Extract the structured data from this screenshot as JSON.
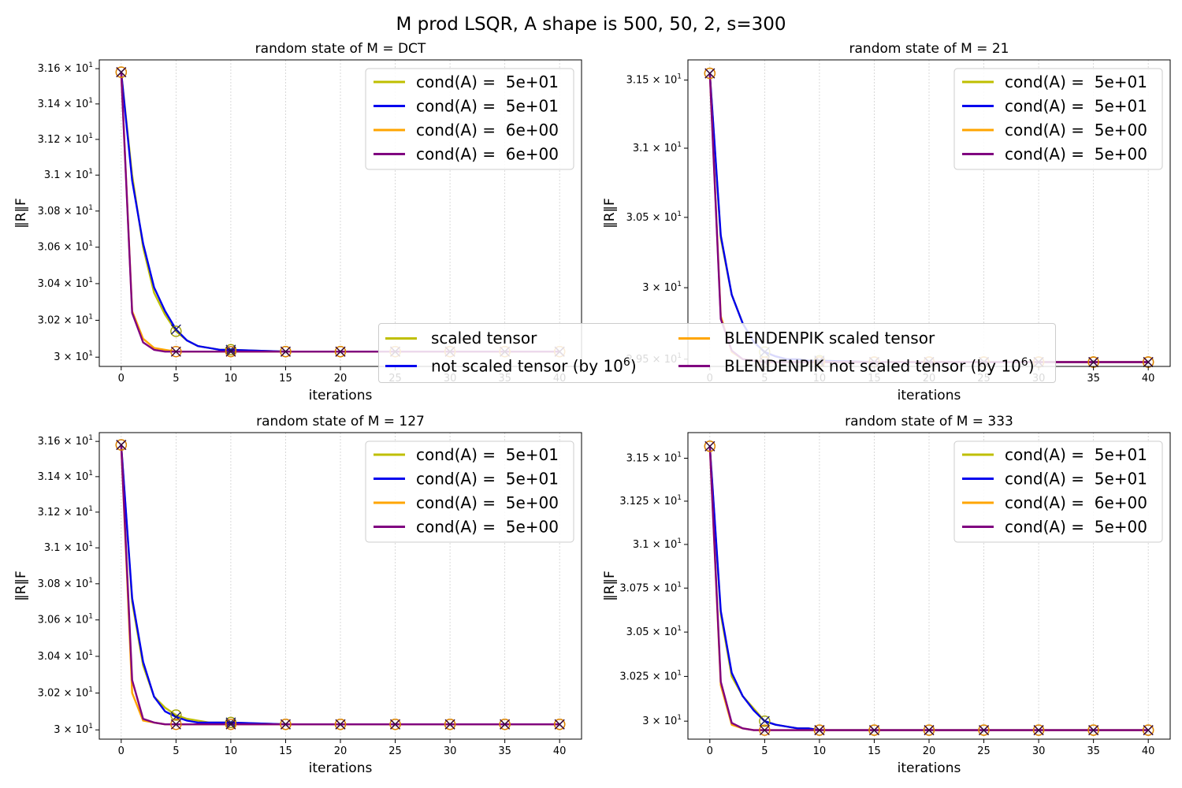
{
  "figure_title": "M prod LSQR, A shape is 500, 50, 2, s=300",
  "legend": {
    "entries": [
      {
        "label": "scaled tensor",
        "color": "#bfbf00"
      },
      {
        "label": "BLENDENPIK scaled tensor",
        "color": "#ffa500"
      },
      {
        "label_prefix": "not scaled tensor (by 10",
        "sup": "6",
        "label_suffix": ")",
        "color": "#0000ee"
      },
      {
        "label_prefix": "BLENDENPIK not scaled tensor (by 10",
        "sup": "6",
        "label_suffix": ")",
        "color": "#800080"
      }
    ]
  },
  "chart_data": [
    {
      "type": "line",
      "title": "random state of M = DCT",
      "xlabel": "iterations",
      "ylabel": "‖R‖F",
      "yscale": "log",
      "xlim": [
        -2,
        42
      ],
      "ylim": [
        29.95,
        31.65
      ],
      "xticks": [
        0,
        5,
        10,
        15,
        20,
        25,
        30,
        35,
        40
      ],
      "yticks": [
        {
          "v": 31.6,
          "m": "3.16"
        },
        {
          "v": 31.4,
          "m": "3.14"
        },
        {
          "v": 31.2,
          "m": "3.12"
        },
        {
          "v": 31.0,
          "m": "3.1"
        },
        {
          "v": 30.8,
          "m": "3.08"
        },
        {
          "v": 30.6,
          "m": "3.06"
        },
        {
          "v": 30.4,
          "m": "3.04"
        },
        {
          "v": 30.2,
          "m": "3.02"
        },
        {
          "v": 30.0,
          "m": "3"
        }
      ],
      "grid_x": true,
      "series": [
        {
          "name": "cond(A) =  5e+01",
          "color": "#bfbf00",
          "x": [
            0,
            1,
            2,
            3,
            4,
            5,
            6,
            7,
            8,
            9,
            10,
            15,
            20,
            25,
            30,
            35,
            40
          ],
          "y": [
            31.58,
            31.0,
            30.6,
            30.35,
            30.23,
            30.14,
            30.09,
            30.06,
            30.05,
            30.04,
            30.04,
            30.03,
            30.03,
            30.03,
            30.03,
            30.03,
            30.03
          ]
        },
        {
          "name": "cond(A) =  5e+01",
          "color": "#0000ee",
          "x": [
            0,
            1,
            2,
            3,
            4,
            5,
            6,
            7,
            8,
            9,
            10,
            15,
            20,
            25,
            30,
            35,
            40
          ],
          "y": [
            31.58,
            30.97,
            30.62,
            30.38,
            30.25,
            30.15,
            30.09,
            30.06,
            30.05,
            30.04,
            30.04,
            30.03,
            30.03,
            30.03,
            30.03,
            30.03,
            30.03
          ]
        },
        {
          "name": "cond(A) =  6e+00",
          "color": "#ffa500",
          "x": [
            0,
            1,
            2,
            3,
            4,
            5,
            6,
            7,
            8,
            9,
            10,
            15,
            20,
            25,
            30,
            35,
            40
          ],
          "y": [
            31.58,
            30.25,
            30.1,
            30.05,
            30.04,
            30.03,
            30.03,
            30.03,
            30.03,
            30.03,
            30.03,
            30.03,
            30.03,
            30.03,
            30.03,
            30.03,
            30.03
          ]
        },
        {
          "name": "cond(A) =  6e+00",
          "color": "#800080",
          "x": [
            0,
            1,
            2,
            3,
            4,
            5,
            6,
            7,
            8,
            9,
            10,
            15,
            20,
            25,
            30,
            35,
            40
          ],
          "y": [
            31.58,
            30.24,
            30.08,
            30.04,
            30.03,
            30.03,
            30.03,
            30.03,
            30.03,
            30.03,
            30.03,
            30.03,
            30.03,
            30.03,
            30.03,
            30.03,
            30.03
          ]
        }
      ]
    },
    {
      "type": "line",
      "title": "random state of M = 21",
      "xlabel": "iterations",
      "ylabel": "‖R‖F",
      "yscale": "log",
      "xlim": [
        -2,
        42
      ],
      "ylim": [
        29.45,
        31.65
      ],
      "xticks": [
        0,
        5,
        10,
        15,
        20,
        25,
        30,
        35,
        40
      ],
      "yticks": [
        {
          "v": 31.5,
          "m": "3.15"
        },
        {
          "v": 31.0,
          "m": "3.1"
        },
        {
          "v": 30.5,
          "m": "3.05"
        },
        {
          "v": 30.0,
          "m": "3"
        },
        {
          "v": 29.5,
          "m": "2.95"
        }
      ],
      "grid_x": true,
      "series": [
        {
          "name": "cond(A) =  5e+01",
          "color": "#bfbf00",
          "x": [
            0,
            1,
            2,
            3,
            4,
            5,
            6,
            7,
            8,
            9,
            10,
            15,
            20,
            25,
            30,
            35,
            40
          ],
          "y": [
            31.55,
            30.35,
            29.95,
            29.75,
            29.62,
            29.55,
            29.52,
            29.5,
            29.5,
            29.49,
            29.49,
            29.48,
            29.48,
            29.48,
            29.48,
            29.48,
            29.48
          ]
        },
        {
          "name": "cond(A) =  5e+01",
          "color": "#0000ee",
          "x": [
            0,
            1,
            2,
            3,
            4,
            5,
            6,
            7,
            8,
            9,
            10,
            15,
            20,
            25,
            30,
            35,
            40
          ],
          "y": [
            31.55,
            30.37,
            29.95,
            29.75,
            29.62,
            29.55,
            29.52,
            29.5,
            29.5,
            29.49,
            29.49,
            29.48,
            29.48,
            29.48,
            29.48,
            29.48,
            29.48
          ]
        },
        {
          "name": "cond(A) =  5e+00",
          "color": "#ffa500",
          "x": [
            0,
            1,
            2,
            3,
            4,
            5,
            6,
            7,
            8,
            9,
            10,
            15,
            20,
            25,
            30,
            35,
            40
          ],
          "y": [
            31.55,
            29.8,
            29.55,
            29.5,
            29.49,
            29.48,
            29.48,
            29.48,
            29.48,
            29.48,
            29.48,
            29.48,
            29.48,
            29.48,
            29.48,
            29.48,
            29.48
          ]
        },
        {
          "name": "cond(A) =  5e+00",
          "color": "#800080",
          "x": [
            0,
            1,
            2,
            3,
            4,
            5,
            6,
            7,
            8,
            9,
            10,
            15,
            20,
            25,
            30,
            35,
            40
          ],
          "y": [
            31.55,
            29.78,
            29.56,
            29.5,
            29.49,
            29.48,
            29.48,
            29.48,
            29.48,
            29.48,
            29.48,
            29.48,
            29.48,
            29.48,
            29.48,
            29.48,
            29.48
          ]
        }
      ]
    },
    {
      "type": "line",
      "title": "random state of M = 127",
      "xlabel": "iterations",
      "ylabel": "‖R‖F",
      "yscale": "log",
      "xlim": [
        -2,
        42
      ],
      "ylim": [
        29.95,
        31.65
      ],
      "xticks": [
        0,
        5,
        10,
        15,
        20,
        25,
        30,
        35,
        40
      ],
      "yticks": [
        {
          "v": 31.6,
          "m": "3.16"
        },
        {
          "v": 31.4,
          "m": "3.14"
        },
        {
          "v": 31.2,
          "m": "3.12"
        },
        {
          "v": 31.0,
          "m": "3.1"
        },
        {
          "v": 30.8,
          "m": "3.08"
        },
        {
          "v": 30.6,
          "m": "3.06"
        },
        {
          "v": 30.4,
          "m": "3.04"
        },
        {
          "v": 30.2,
          "m": "3.02"
        },
        {
          "v": 30.0,
          "m": "3"
        }
      ],
      "grid_x": true,
      "series": [
        {
          "name": "cond(A) =  5e+01",
          "color": "#bfbf00",
          "x": [
            0,
            1,
            2,
            3,
            4,
            5,
            6,
            7,
            8,
            9,
            10,
            15,
            20,
            25,
            30,
            35,
            40
          ],
          "y": [
            31.58,
            30.7,
            30.35,
            30.18,
            30.12,
            30.08,
            30.06,
            30.05,
            30.04,
            30.04,
            30.04,
            30.03,
            30.03,
            30.03,
            30.03,
            30.03,
            30.03
          ]
        },
        {
          "name": "cond(A) =  5e+01",
          "color": "#0000ee",
          "x": [
            0,
            1,
            2,
            3,
            4,
            5,
            6,
            7,
            8,
            9,
            10,
            15,
            20,
            25,
            30,
            35,
            40
          ],
          "y": [
            31.58,
            30.72,
            30.37,
            30.18,
            30.1,
            30.07,
            30.05,
            30.04,
            30.04,
            30.04,
            30.04,
            30.03,
            30.03,
            30.03,
            30.03,
            30.03,
            30.03
          ]
        },
        {
          "name": "cond(A) =  5e+00",
          "color": "#ffa500",
          "x": [
            0,
            1,
            2,
            3,
            4,
            5,
            6,
            7,
            8,
            9,
            10,
            15,
            20,
            25,
            30,
            35,
            40
          ],
          "y": [
            31.58,
            30.2,
            30.05,
            30.04,
            30.03,
            30.03,
            30.03,
            30.03,
            30.03,
            30.03,
            30.03,
            30.03,
            30.03,
            30.03,
            30.03,
            30.03,
            30.03
          ]
        },
        {
          "name": "cond(A) =  5e+00",
          "color": "#800080",
          "x": [
            0,
            1,
            2,
            3,
            4,
            5,
            6,
            7,
            8,
            9,
            10,
            15,
            20,
            25,
            30,
            35,
            40
          ],
          "y": [
            31.58,
            30.27,
            30.06,
            30.04,
            30.03,
            30.03,
            30.03,
            30.03,
            30.03,
            30.03,
            30.03,
            30.03,
            30.03,
            30.03,
            30.03,
            30.03,
            30.03
          ]
        }
      ]
    },
    {
      "type": "line",
      "title": "random state of M = 333",
      "xlabel": "iterations",
      "ylabel": "‖R‖F",
      "yscale": "log",
      "xlim": [
        -2,
        42
      ],
      "ylim": [
        29.9,
        31.65
      ],
      "xticks": [
        0,
        5,
        10,
        15,
        20,
        25,
        30,
        35,
        40
      ],
      "yticks": [
        {
          "v": 31.5,
          "m": "3.15"
        },
        {
          "v": 31.25,
          "m": "3.125"
        },
        {
          "v": 31.0,
          "m": "3.1"
        },
        {
          "v": 30.75,
          "m": "3.075"
        },
        {
          "v": 30.5,
          "m": "3.05"
        },
        {
          "v": 30.25,
          "m": "3.025"
        },
        {
          "v": 30.0,
          "m": "3"
        }
      ],
      "grid_x": true,
      "series": [
        {
          "name": "cond(A) =  5e+01",
          "color": "#bfbf00",
          "x": [
            0,
            1,
            2,
            3,
            4,
            5,
            6,
            7,
            8,
            9,
            10,
            15,
            20,
            25,
            30,
            35,
            40
          ],
          "y": [
            31.57,
            30.6,
            30.25,
            30.14,
            30.07,
            30.0,
            29.98,
            29.97,
            29.96,
            29.96,
            29.95,
            29.95,
            29.95,
            29.95,
            29.95,
            29.95,
            29.95
          ]
        },
        {
          "name": "cond(A) =  5e+01",
          "color": "#0000ee",
          "x": [
            0,
            1,
            2,
            3,
            4,
            5,
            6,
            7,
            8,
            9,
            10,
            15,
            20,
            25,
            30,
            35,
            40
          ],
          "y": [
            31.57,
            30.62,
            30.27,
            30.14,
            30.06,
            30.0,
            29.98,
            29.97,
            29.96,
            29.96,
            29.95,
            29.95,
            29.95,
            29.95,
            29.95,
            29.95,
            29.95
          ]
        },
        {
          "name": "cond(A) =  6e+00",
          "color": "#ffa500",
          "x": [
            0,
            1,
            2,
            3,
            4,
            5,
            6,
            7,
            8,
            9,
            10,
            15,
            20,
            25,
            30,
            35,
            40
          ],
          "y": [
            31.57,
            30.2,
            29.98,
            29.96,
            29.95,
            29.95,
            29.95,
            29.95,
            29.95,
            29.95,
            29.95,
            29.95,
            29.95,
            29.95,
            29.95,
            29.95,
            29.95
          ]
        },
        {
          "name": "cond(A) =  5e+00",
          "color": "#800080",
          "x": [
            0,
            1,
            2,
            3,
            4,
            5,
            6,
            7,
            8,
            9,
            10,
            15,
            20,
            25,
            30,
            35,
            40
          ],
          "y": [
            31.57,
            30.22,
            29.99,
            29.96,
            29.95,
            29.95,
            29.95,
            29.95,
            29.95,
            29.95,
            29.95,
            29.95,
            29.95,
            29.95,
            29.95,
            29.95,
            29.95
          ]
        }
      ]
    }
  ]
}
